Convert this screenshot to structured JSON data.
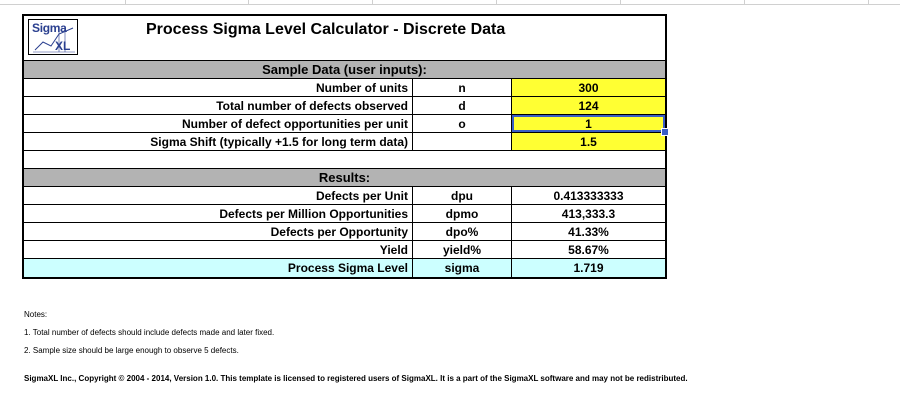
{
  "title": "Process Sigma Level Calculator - Discrete Data",
  "logo": {
    "line1": "Sigma",
    "line2": "XL"
  },
  "inputs_header": "Sample Data (user inputs):",
  "inputs": [
    {
      "label": "Number of units",
      "symbol": "n",
      "value": "300"
    },
    {
      "label": "Total number of defects observed",
      "symbol": "d",
      "value": "124"
    },
    {
      "label": "Number of defect opportunities per unit",
      "symbol": "o",
      "value": "1"
    },
    {
      "label": "Sigma Shift (typically +1.5 for long term data)",
      "symbol": "",
      "value": "1.5"
    }
  ],
  "results_header": "Results:",
  "results": [
    {
      "label": "Defects per Unit",
      "symbol": "dpu",
      "value": "0.413333333"
    },
    {
      "label": "Defects per Million Opportunities",
      "symbol": "dpmo",
      "value": "413,333.3"
    },
    {
      "label": "Defects per Opportunity",
      "symbol": "dpo%",
      "value": "41.33%"
    },
    {
      "label": "Yield",
      "symbol": "yield%",
      "value": "58.67%"
    },
    {
      "label": "Process Sigma Level",
      "symbol": "sigma",
      "value": "1.719"
    }
  ],
  "notes": {
    "heading": "Notes:",
    "items": [
      "1. Total number of defects should include defects made and later fixed.",
      "2. Sample size should be large enough to observe 5 defects."
    ]
  },
  "footer": "SigmaXL Inc., Copyright © 2004 - 2014, Version 1.0. This template is licensed to registered users of SigmaXL.  It is a part of the SigmaXL software and may not be redistributed.",
  "colors": {
    "input_fill": "#ffff33",
    "section_fill": "#b3b3b3",
    "sigma_fill": "#ccffff",
    "selection": "#3b5ec4"
  }
}
